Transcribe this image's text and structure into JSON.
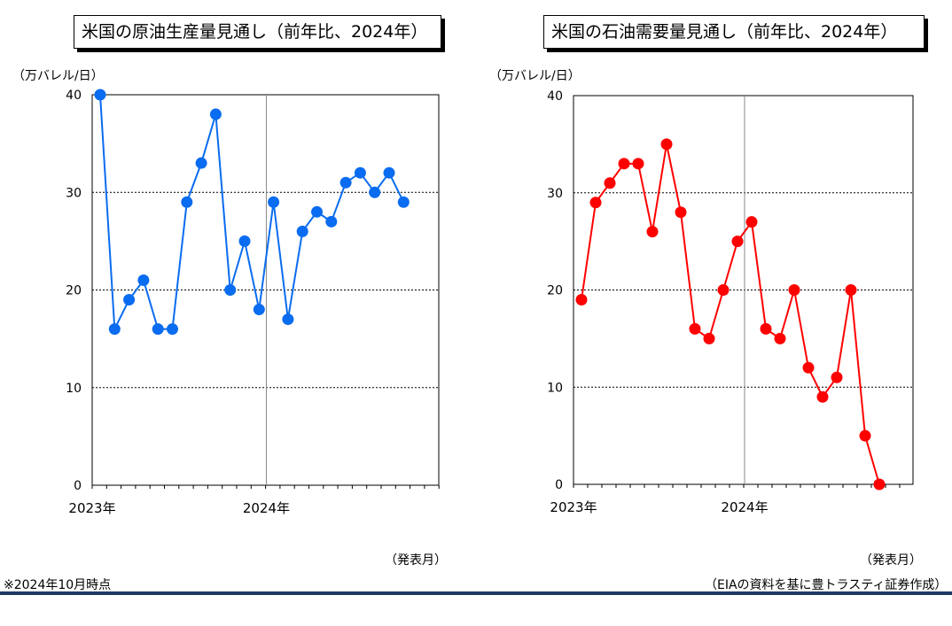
{
  "notes": {
    "left": "※2024年10月時点",
    "right": "（EIAの資料を基に豊トラスティ証券作成）"
  },
  "colors": {
    "bottom_rule": "#1f3864",
    "gridline": "#000000"
  },
  "chart_data": [
    {
      "type": "line",
      "title": "米国の原油生産量見通し（前年比、2024年）",
      "ylabel": "（万バレル/日）",
      "xlabel": "（発表月）",
      "x_tick_labels": [
        "2023年",
        "2024年"
      ],
      "y_tick_labels": [
        "0",
        "10",
        "20",
        "30",
        "40"
      ],
      "ylim": [
        0,
        40
      ],
      "grid": "horizontal dotted",
      "color": "#0a6cf0",
      "x": [
        "2023-01",
        "2023-02",
        "2023-03",
        "2023-04",
        "2023-05",
        "2023-06",
        "2023-07",
        "2023-08",
        "2023-09",
        "2023-10",
        "2023-11",
        "2023-12",
        "2024-01",
        "2024-02",
        "2024-03",
        "2024-04",
        "2024-05",
        "2024-06",
        "2024-07",
        "2024-08",
        "2024-09",
        "2024-10"
      ],
      "values": [
        40,
        16,
        19,
        21,
        16,
        16,
        29,
        33,
        38,
        20,
        25,
        18,
        29,
        17,
        26,
        28,
        27,
        31,
        32,
        30,
        32,
        29
      ]
    },
    {
      "type": "line",
      "title": "米国の石油需要量見通し（前年比、2024年）",
      "ylabel": "（万バレル/日）",
      "xlabel": "（発表月）",
      "x_tick_labels": [
        "2023年",
        "2024年"
      ],
      "y_tick_labels": [
        "0",
        "10",
        "20",
        "30",
        "40"
      ],
      "ylim": [
        0,
        40
      ],
      "grid": "horizontal dotted",
      "color": "#ff0000",
      "x": [
        "2023-01",
        "2023-02",
        "2023-03",
        "2023-04",
        "2023-05",
        "2023-06",
        "2023-07",
        "2023-08",
        "2023-09",
        "2023-10",
        "2023-11",
        "2023-12",
        "2024-01",
        "2024-02",
        "2024-03",
        "2024-04",
        "2024-05",
        "2024-06",
        "2024-07",
        "2024-08",
        "2024-09",
        "2024-10"
      ],
      "values": [
        19,
        29,
        31,
        33,
        33,
        26,
        35,
        28,
        16,
        15,
        20,
        25,
        27,
        16,
        15,
        20,
        12,
        9,
        11,
        20,
        5,
        0
      ]
    }
  ]
}
